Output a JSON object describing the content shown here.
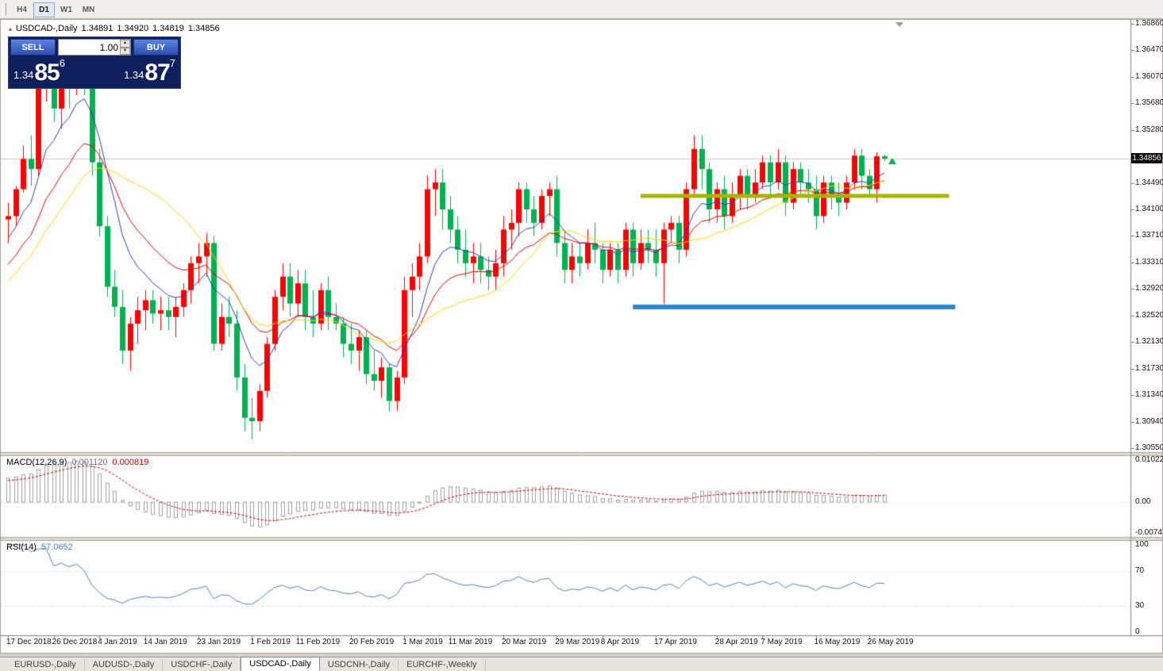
{
  "window": {
    "symbol_title": "USDCAD-,Daily",
    "ohlc": {
      "open": "1.34891",
      "high": "1.34920",
      "low": "1.34819",
      "close": "1.34856"
    }
  },
  "toolbar": {
    "timeframes": [
      {
        "label": "H4",
        "active": false
      },
      {
        "label": "D1",
        "active": true
      },
      {
        "label": "W1",
        "active": false
      },
      {
        "label": "MN",
        "active": false
      }
    ]
  },
  "trade_panel": {
    "sell_label": "SELL",
    "buy_label": "BUY",
    "volume": "1.00",
    "bid_prefix": "1.34",
    "bid_big": "85",
    "bid_sup": "6",
    "ask_prefix": "1.34",
    "ask_big": "87",
    "ask_sup": "7"
  },
  "price_scale": {
    "labels": [
      "1.36860",
      "1.36470",
      "1.36070",
      "1.35680",
      "1.35280",
      "1.34880",
      "1.34490",
      "1.34100",
      "1.33710",
      "1.33310",
      "1.32920",
      "1.32520",
      "1.32130",
      "1.31730",
      "1.31340",
      "1.30940",
      "1.30550"
    ],
    "current_price_tag": "1.34856"
  },
  "macd_panel": {
    "title": "MACD(12,26,9)",
    "value_main": "0.001120",
    "value_signal": "0.000819",
    "scale_labels": [
      "0.010229",
      "0.00",
      "-0.007477"
    ],
    "scale_values": [
      0.010229,
      0,
      -0.007477
    ]
  },
  "rsi_panel": {
    "title": "RSI(14)",
    "value": "57.0652",
    "scale_labels": [
      "100",
      "70",
      "30",
      "0"
    ],
    "scale_values": [
      100,
      70,
      30,
      0
    ],
    "levels": [
      70,
      30
    ]
  },
  "tabs": {
    "items": [
      "EURUSD-,Daily",
      "AUDUSD-,Daily",
      "USDCHF-,Daily",
      "USDCAD-,Daily",
      "USDCNH-,Daily",
      "EURCHF-,Weekly"
    ],
    "active_index": 3
  },
  "colors": {
    "bull": "#fd0000",
    "bear": "#00b14f",
    "ma_fast": "#2b3dc0",
    "ma_mid": "#ea0000",
    "ma_slow": "#ffd500",
    "macd_histogram": "#a0a0a0",
    "macd_signal": "#d00000",
    "rsi_line": "#4f81bd",
    "hline_olive": "#a8b400",
    "hline_blue": "#2f87c9",
    "panel_navy": "#10205c",
    "button_blue": "#2b4fae",
    "price_line": "#c6c6c6",
    "tag_bg": "#000000"
  },
  "chart_data": {
    "type": "candlestick",
    "symbol": "USDCAD",
    "timeframe": "Daily",
    "bull_means": "up-close drawn red, down-close drawn green",
    "y_range": [
      1.3049,
      1.3692
    ],
    "current_price": 1.34856,
    "x_ticks": [
      {
        "index": 0,
        "label": "17 Dec 2018"
      },
      {
        "index": 6,
        "label": "26 Dec 2018"
      },
      {
        "index": 12,
        "label": "4 Jan 2019"
      },
      {
        "index": 18,
        "label": "14 Jan 2019"
      },
      {
        "index": 25,
        "label": "23 Jan 2019"
      },
      {
        "index": 32,
        "label": "1 Feb 2019"
      },
      {
        "index": 38,
        "label": "11 Feb 2019"
      },
      {
        "index": 45,
        "label": "20 Feb 2019"
      },
      {
        "index": 52,
        "label": "1 Mar 2019"
      },
      {
        "index": 58,
        "label": "11 Mar 2019"
      },
      {
        "index": 65,
        "label": "20 Mar 2019"
      },
      {
        "index": 72,
        "label": "29 Mar 2019"
      },
      {
        "index": 78,
        "label": "8 Apr 2019"
      },
      {
        "index": 85,
        "label": "17 Apr 2019"
      },
      {
        "index": 93,
        "label": "28 Apr 2019"
      },
      {
        "index": 99,
        "label": "7 May 2019"
      },
      {
        "index": 106,
        "label": "16 May 2019"
      },
      {
        "index": 113,
        "label": "26 May 2019"
      }
    ],
    "moving_averages": [
      {
        "type": "ema",
        "period": 8,
        "color_key": "ma_fast"
      },
      {
        "type": "ema",
        "period": 16,
        "color_key": "ma_mid"
      },
      {
        "type": "sma",
        "period": 20,
        "color_key": "ma_slow"
      }
    ],
    "hlines": [
      {
        "name": "resistance-line",
        "price": 1.343,
        "from_index": 83,
        "to_index": 123.5,
        "color_key": "hline_olive",
        "thickness": 5
      },
      {
        "name": "support-line",
        "price": 1.3265,
        "from_index": 82,
        "to_index": 124.3,
        "color_key": "hline_blue",
        "thickness": 6
      }
    ],
    "macd": {
      "fast": 12,
      "slow": 26,
      "signal": 9
    },
    "rsi": {
      "period": 14
    },
    "candles": [
      [
        1.3395,
        1.342,
        1.336,
        1.34
      ],
      [
        1.34,
        1.3445,
        1.3385,
        1.344
      ],
      [
        1.344,
        1.3505,
        1.3435,
        1.3485
      ],
      [
        1.3485,
        1.352,
        1.3445,
        1.347
      ],
      [
        1.347,
        1.36,
        1.346,
        1.359
      ],
      [
        1.359,
        1.365,
        1.357,
        1.364
      ],
      [
        1.364,
        1.366,
        1.354,
        1.356
      ],
      [
        1.356,
        1.362,
        1.353,
        1.361
      ],
      [
        1.361,
        1.363,
        1.356,
        1.359
      ],
      [
        1.359,
        1.3665,
        1.358,
        1.364
      ],
      [
        1.364,
        1.3664,
        1.358,
        1.36
      ],
      [
        1.36,
        1.363,
        1.346,
        1.348
      ],
      [
        1.348,
        1.35,
        1.337,
        1.3385
      ],
      [
        1.3385,
        1.34,
        1.328,
        1.3295
      ],
      [
        1.3295,
        1.332,
        1.325,
        1.3265
      ],
      [
        1.3265,
        1.329,
        1.318,
        1.32
      ],
      [
        1.32,
        1.325,
        1.317,
        1.324
      ],
      [
        1.324,
        1.328,
        1.321,
        1.326
      ],
      [
        1.326,
        1.329,
        1.323,
        1.3275
      ],
      [
        1.3275,
        1.329,
        1.324,
        1.3255
      ],
      [
        1.3255,
        1.328,
        1.323,
        1.326
      ],
      [
        1.326,
        1.328,
        1.323,
        1.325
      ],
      [
        1.325,
        1.328,
        1.322,
        1.3265
      ],
      [
        1.3265,
        1.33,
        1.325,
        1.329
      ],
      [
        1.329,
        1.334,
        1.327,
        1.333
      ],
      [
        1.333,
        1.336,
        1.33,
        1.334
      ],
      [
        1.334,
        1.3375,
        1.331,
        1.336
      ],
      [
        1.336,
        1.337,
        1.32,
        1.321
      ],
      [
        1.321,
        1.327,
        1.32,
        1.325
      ],
      [
        1.325,
        1.328,
        1.322,
        1.324
      ],
      [
        1.324,
        1.326,
        1.314,
        1.316
      ],
      [
        1.316,
        1.318,
        1.308,
        1.31
      ],
      [
        1.31,
        1.313,
        1.3068,
        1.3095
      ],
      [
        1.3095,
        1.315,
        1.308,
        1.314
      ],
      [
        1.314,
        1.322,
        1.313,
        1.321
      ],
      [
        1.321,
        1.329,
        1.32,
        1.328
      ],
      [
        1.328,
        1.333,
        1.326,
        1.331
      ],
      [
        1.331,
        1.333,
        1.325,
        1.327
      ],
      [
        1.327,
        1.332,
        1.325,
        1.33
      ],
      [
        1.33,
        1.332,
        1.323,
        1.325
      ],
      [
        1.325,
        1.329,
        1.322,
        1.324
      ],
      [
        1.324,
        1.33,
        1.323,
        1.329
      ],
      [
        1.329,
        1.331,
        1.323,
        1.325
      ],
      [
        1.325,
        1.327,
        1.323,
        1.324
      ],
      [
        1.324,
        1.325,
        1.319,
        1.321
      ],
      [
        1.321,
        1.324,
        1.318,
        1.32
      ],
      [
        1.32,
        1.323,
        1.317,
        1.322
      ],
      [
        1.322,
        1.323,
        1.315,
        1.3165
      ],
      [
        1.3165,
        1.32,
        1.314,
        1.3155
      ],
      [
        1.3155,
        1.319,
        1.313,
        1.3175
      ],
      [
        1.3175,
        1.318,
        1.311,
        1.3125
      ],
      [
        1.3125,
        1.317,
        1.311,
        1.316
      ],
      [
        1.316,
        1.331,
        1.315,
        1.329
      ],
      [
        1.329,
        1.333,
        1.325,
        1.331
      ],
      [
        1.331,
        1.336,
        1.329,
        1.334
      ],
      [
        1.334,
        1.346,
        1.333,
        1.344
      ],
      [
        1.344,
        1.347,
        1.34,
        1.345
      ],
      [
        1.345,
        1.347,
        1.338,
        1.341
      ],
      [
        1.341,
        1.343,
        1.336,
        1.338
      ],
      [
        1.338,
        1.34,
        1.333,
        1.335
      ],
      [
        1.335,
        1.338,
        1.331,
        1.333
      ],
      [
        1.333,
        1.336,
        1.33,
        1.334
      ],
      [
        1.334,
        1.336,
        1.33,
        1.332
      ],
      [
        1.332,
        1.334,
        1.329,
        1.331
      ],
      [
        1.331,
        1.335,
        1.329,
        1.333
      ],
      [
        1.333,
        1.34,
        1.331,
        1.338
      ],
      [
        1.338,
        1.341,
        1.335,
        1.339
      ],
      [
        1.339,
        1.345,
        1.337,
        1.344
      ],
      [
        1.344,
        1.345,
        1.339,
        1.341
      ],
      [
        1.341,
        1.343,
        1.337,
        1.339
      ],
      [
        1.339,
        1.344,
        1.338,
        1.343
      ],
      [
        1.343,
        1.345,
        1.34,
        1.344
      ],
      [
        1.344,
        1.346,
        1.334,
        1.336
      ],
      [
        1.336,
        1.338,
        1.33,
        1.332
      ],
      [
        1.332,
        1.336,
        1.33,
        1.334
      ],
      [
        1.334,
        1.336,
        1.331,
        1.333
      ],
      [
        1.333,
        1.338,
        1.332,
        1.336
      ],
      [
        1.336,
        1.339,
        1.333,
        1.335
      ],
      [
        1.335,
        1.336,
        1.33,
        1.332
      ],
      [
        1.332,
        1.336,
        1.331,
        1.335
      ],
      [
        1.335,
        1.336,
        1.33,
        1.332
      ],
      [
        1.332,
        1.339,
        1.331,
        1.338
      ],
      [
        1.338,
        1.339,
        1.331,
        1.333
      ],
      [
        1.333,
        1.338,
        1.332,
        1.336
      ],
      [
        1.336,
        1.338,
        1.333,
        1.335
      ],
      [
        1.335,
        1.338,
        1.331,
        1.333
      ],
      [
        1.333,
        1.339,
        1.327,
        1.338
      ],
      [
        1.338,
        1.34,
        1.336,
        1.339
      ],
      [
        1.339,
        1.34,
        1.333,
        1.335
      ],
      [
        1.335,
        1.345,
        1.334,
        1.344
      ],
      [
        1.344,
        1.352,
        1.343,
        1.35
      ],
      [
        1.35,
        1.352,
        1.344,
        1.347
      ],
      [
        1.347,
        1.348,
        1.339,
        1.341
      ],
      [
        1.341,
        1.345,
        1.339,
        1.344
      ],
      [
        1.344,
        1.346,
        1.338,
        1.34
      ],
      [
        1.34,
        1.345,
        1.339,
        1.343
      ],
      [
        1.343,
        1.347,
        1.341,
        1.346
      ],
      [
        1.346,
        1.347,
        1.341,
        1.343
      ],
      [
        1.343,
        1.347,
        1.342,
        1.345
      ],
      [
        1.345,
        1.349,
        1.344,
        1.348
      ],
      [
        1.348,
        1.349,
        1.343,
        1.345
      ],
      [
        1.345,
        1.35,
        1.344,
        1.348
      ],
      [
        1.348,
        1.349,
        1.34,
        1.342
      ],
      [
        1.342,
        1.348,
        1.341,
        1.347
      ],
      [
        1.347,
        1.348,
        1.343,
        1.345
      ],
      [
        1.345,
        1.347,
        1.342,
        1.344
      ],
      [
        1.344,
        1.346,
        1.338,
        1.34
      ],
      [
        1.34,
        1.346,
        1.339,
        1.345
      ],
      [
        1.345,
        1.346,
        1.341,
        1.343
      ],
      [
        1.343,
        1.345,
        1.34,
        1.342
      ],
      [
        1.342,
        1.346,
        1.341,
        1.345
      ],
      [
        1.345,
        1.35,
        1.344,
        1.349
      ],
      [
        1.349,
        1.35,
        1.344,
        1.346
      ],
      [
        1.346,
        1.347,
        1.343,
        1.344
      ],
      [
        1.344,
        1.3495,
        1.342,
        1.3489
      ],
      [
        1.34891,
        1.3492,
        1.34819,
        1.34856
      ]
    ]
  }
}
